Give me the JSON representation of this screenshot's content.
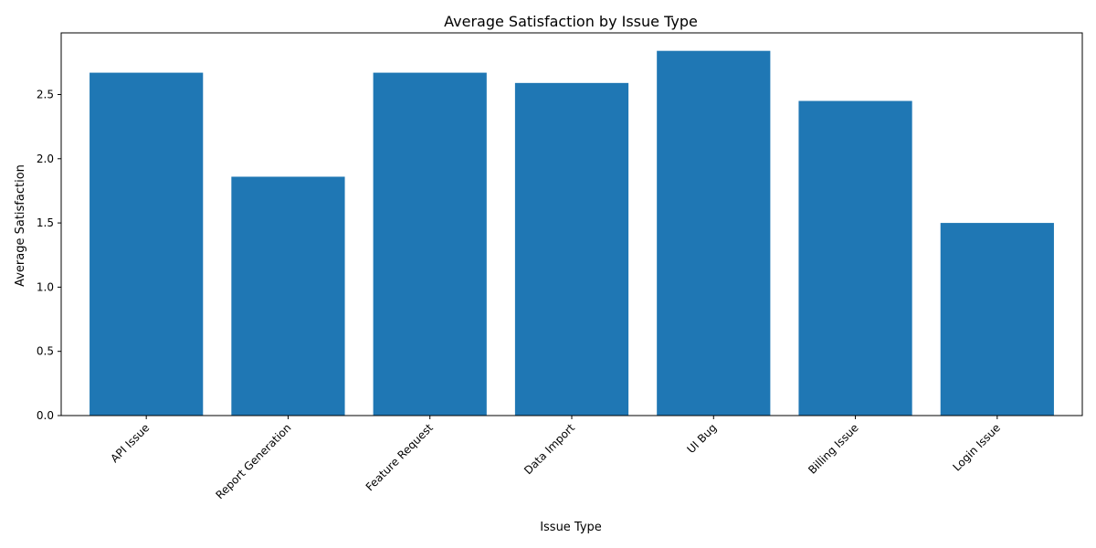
{
  "chart_data": {
    "type": "bar",
    "title": "Average Satisfaction by Issue Type",
    "xlabel": "Issue Type",
    "ylabel": "Average Satisfaction",
    "categories": [
      "API Issue",
      "Report Generation",
      "Feature Request",
      "Data Import",
      "UI Bug",
      "Billing Issue",
      "Login Issue"
    ],
    "values": [
      2.67,
      1.86,
      2.67,
      2.59,
      2.84,
      2.45,
      1.5
    ],
    "ylim": [
      0,
      2.98
    ],
    "yticks": [
      0.0,
      0.5,
      1.0,
      1.5,
      2.0,
      2.5
    ],
    "ytick_labels": [
      "0.0",
      "0.5",
      "1.0",
      "1.5",
      "2.0",
      "2.5"
    ],
    "bar_color": "#1f77b4",
    "grid": false,
    "legend": false
  }
}
